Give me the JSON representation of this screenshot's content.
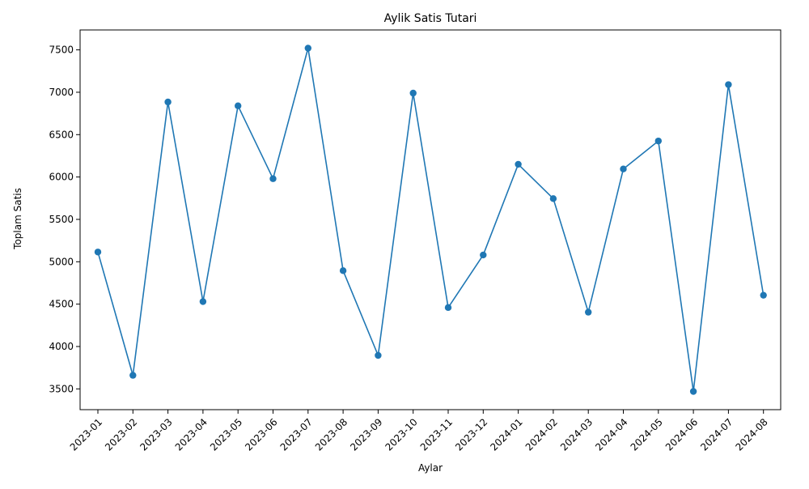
{
  "chart_data": {
    "type": "line",
    "title": "Aylik Satis Tutari",
    "xlabel": "Aylar",
    "ylabel": "Toplam Satis",
    "categories": [
      "2023-01",
      "2023-02",
      "2023-03",
      "2023-04",
      "2023-05",
      "2023-06",
      "2023-07",
      "2023-08",
      "2023-09",
      "2023-10",
      "2023-11",
      "2023-12",
      "2024-01",
      "2024-02",
      "2024-03",
      "2024-04",
      "2024-05",
      "2024-06",
      "2024-07",
      "2024-08"
    ],
    "series": [
      {
        "values": [
          5115,
          3660,
          6885,
          4530,
          6840,
          5980,
          7520,
          4895,
          3895,
          6990,
          4460,
          5080,
          6150,
          5745,
          4405,
          6095,
          6425,
          3470,
          7090,
          4605
        ]
      }
    ],
    "ylim": [
      3255,
      7735
    ],
    "yticks": [
      3500,
      4000,
      4500,
      5000,
      5500,
      6000,
      6500,
      7000,
      7500
    ],
    "grid": false,
    "marker": "circle",
    "color": "#1f77b4"
  }
}
